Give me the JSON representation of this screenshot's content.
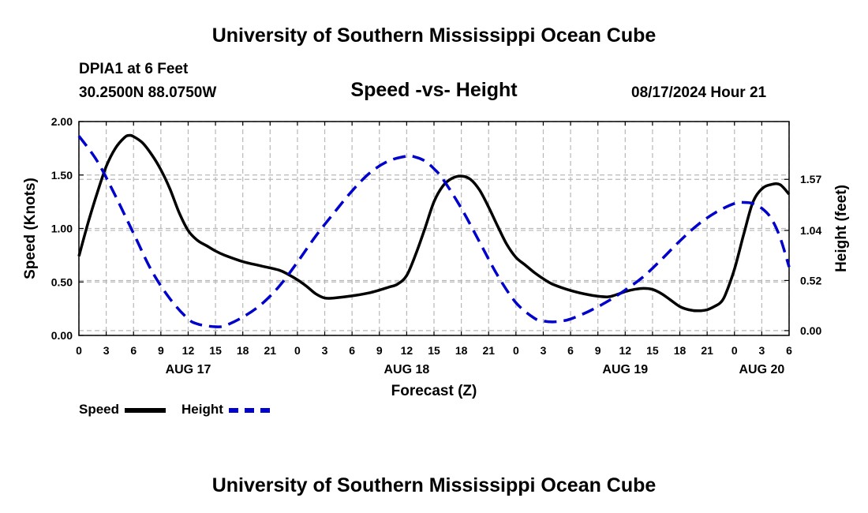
{
  "header": {
    "title": "University of Southern Mississippi Ocean Cube",
    "station": "DPIA1 at 6 Feet",
    "coords": "30.2500N  88.0750W",
    "chart_title": "Speed -vs- Height",
    "datetime": "08/17/2024 Hour 21"
  },
  "footer": {
    "title": "University of Southern Mississippi Ocean Cube"
  },
  "legend": {
    "speed_label": "Speed",
    "height_label": "Height"
  },
  "colors": {
    "speed": "#000000",
    "height": "#0000cc",
    "grid": "#b8b8b8"
  },
  "chart_data": {
    "type": "line",
    "title": "Speed -vs- Height",
    "xlabel": "Forecast (Z)",
    "ylabel": "Speed (Knots)",
    "y2label": "Height (feet)",
    "xlim": [
      0,
      78
    ],
    "ylim": [
      0,
      2.0
    ],
    "y2lim": [
      -0.05,
      2.17
    ],
    "x_ticks": [
      0,
      3,
      6,
      9,
      12,
      15,
      18,
      21,
      24,
      27,
      30,
      33,
      36,
      39,
      42,
      45,
      48,
      51,
      54,
      57,
      60,
      63,
      66,
      69,
      72,
      75,
      78
    ],
    "x_tick_labels": [
      "0",
      "3",
      "6",
      "9",
      "12",
      "15",
      "18",
      "21",
      "0",
      "3",
      "6",
      "9",
      "12",
      "15",
      "18",
      "21",
      "0",
      "3",
      "6",
      "9",
      "12",
      "15",
      "18",
      "21",
      "0",
      "3",
      "6"
    ],
    "date_labels": [
      {
        "x": 12,
        "label": "AUG 17"
      },
      {
        "x": 36,
        "label": "AUG 18"
      },
      {
        "x": 60,
        "label": "AUG 19"
      },
      {
        "x": 75,
        "label": "AUG 20"
      }
    ],
    "y_ticks": [
      0,
      0.5,
      1.0,
      1.5,
      2.0
    ],
    "y_tick_labels": [
      "0.00",
      "0.50",
      "1.00",
      "1.50",
      "2.00"
    ],
    "y2_ticks": [
      0,
      0.52,
      1.04,
      1.57
    ],
    "y2_tick_labels": [
      "0.00",
      "0.52",
      "1.04",
      "1.57"
    ],
    "series": [
      {
        "name": "Speed",
        "axis": "left",
        "style": "solid",
        "x": [
          0,
          1,
          2,
          3,
          4,
          5,
          5.5,
          6,
          7,
          8,
          9,
          10,
          11,
          12,
          13,
          14,
          15,
          16,
          18,
          20,
          22,
          23,
          24,
          25,
          26,
          27,
          28,
          30,
          32,
          34,
          35,
          36,
          37,
          38,
          39,
          40,
          41,
          42,
          43,
          44,
          45,
          46,
          47,
          48,
          49,
          50,
          51,
          52,
          54,
          56,
          58,
          59,
          60,
          61,
          62,
          63,
          64,
          65,
          66,
          67,
          68,
          69,
          70,
          70.5,
          71,
          72,
          73,
          74,
          75,
          76,
          77,
          78
        ],
        "values": [
          0.74,
          1.05,
          1.33,
          1.58,
          1.75,
          1.85,
          1.87,
          1.86,
          1.8,
          1.69,
          1.55,
          1.37,
          1.15,
          0.98,
          0.89,
          0.84,
          0.79,
          0.75,
          0.69,
          0.65,
          0.61,
          0.57,
          0.52,
          0.46,
          0.39,
          0.35,
          0.35,
          0.37,
          0.4,
          0.45,
          0.48,
          0.56,
          0.76,
          1.0,
          1.25,
          1.4,
          1.47,
          1.49,
          1.46,
          1.36,
          1.2,
          1.02,
          0.85,
          0.73,
          0.66,
          0.59,
          0.53,
          0.48,
          0.42,
          0.38,
          0.36,
          0.38,
          0.41,
          0.43,
          0.44,
          0.43,
          0.39,
          0.33,
          0.27,
          0.24,
          0.23,
          0.24,
          0.28,
          0.31,
          0.38,
          0.62,
          0.94,
          1.24,
          1.37,
          1.41,
          1.41,
          1.32
        ]
      },
      {
        "name": "Height",
        "axis": "right",
        "style": "dashed",
        "x": [
          0,
          2,
          4,
          6,
          8,
          10,
          12,
          13,
          14,
          15,
          16,
          18,
          20,
          22,
          24,
          26,
          28,
          30,
          32,
          34,
          36,
          37,
          38,
          39,
          40,
          42,
          44,
          46,
          48,
          50,
          51,
          52,
          53,
          54,
          56,
          58,
          60,
          62,
          64,
          66,
          68,
          70,
          72,
          73,
          74,
          75,
          76,
          77,
          78
        ],
        "values": [
          2.02,
          1.76,
          1.4,
          1.01,
          0.62,
          0.33,
          0.12,
          0.07,
          0.05,
          0.04,
          0.05,
          0.14,
          0.27,
          0.46,
          0.71,
          0.98,
          1.22,
          1.45,
          1.64,
          1.76,
          1.81,
          1.8,
          1.76,
          1.68,
          1.57,
          1.27,
          0.92,
          0.57,
          0.29,
          0.13,
          0.1,
          0.09,
          0.1,
          0.12,
          0.2,
          0.3,
          0.42,
          0.56,
          0.74,
          0.93,
          1.1,
          1.23,
          1.32,
          1.33,
          1.32,
          1.27,
          1.17,
          0.97,
          0.66
        ]
      }
    ]
  }
}
